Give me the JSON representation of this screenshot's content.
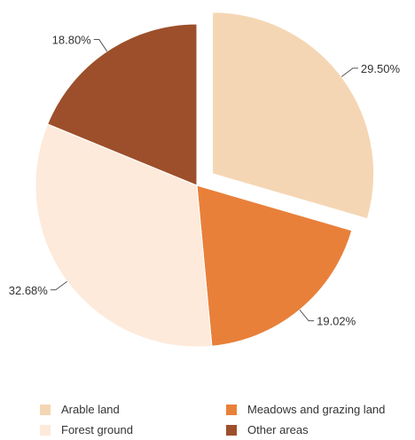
{
  "chart_data": {
    "type": "pie",
    "slices": [
      {
        "label": "Arable land",
        "value": 29.5,
        "display": "29.50%",
        "color": "#f5d6b4",
        "exploded": true
      },
      {
        "label": "Meadows and grazing land",
        "value": 19.02,
        "display": "19.02%",
        "color": "#e8803a",
        "exploded": false
      },
      {
        "label": "Forest ground",
        "value": 32.68,
        "display": "32.68%",
        "color": "#fdeadb",
        "exploded": false
      },
      {
        "label": "Other areas",
        "value": 18.8,
        "display": "18.80%",
        "color": "#9c4f2a",
        "exploded": false
      }
    ],
    "legend_position": "bottom",
    "title": ""
  }
}
